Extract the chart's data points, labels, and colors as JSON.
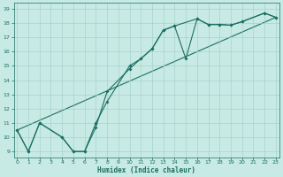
{
  "xlabel": "Humidex (Indice chaleur)",
  "bg_color": "#c8eae4",
  "line_color": "#1a6e62",
  "grid_color": "#a0ccc8",
  "xticks": [
    0,
    1,
    2,
    3,
    4,
    5,
    6,
    7,
    8,
    9,
    10,
    11,
    12,
    13,
    14,
    15,
    16,
    17,
    18,
    19,
    20,
    21,
    22,
    23
  ],
  "yticks": [
    9,
    10,
    11,
    12,
    13,
    14,
    15,
    16,
    17,
    18,
    19
  ],
  "xlim": [
    -0.3,
    23.3
  ],
  "ylim": [
    8.6,
    19.4
  ],
  "curve1_x": [
    0,
    1,
    2,
    4,
    5,
    6,
    7,
    8,
    10,
    11,
    12,
    13,
    14,
    15,
    16,
    17,
    18,
    19,
    20,
    22,
    23
  ],
  "curve1_y": [
    10.5,
    9.0,
    11.0,
    10.0,
    9.0,
    9.0,
    10.7,
    13.2,
    14.8,
    15.5,
    16.2,
    17.5,
    17.8,
    15.5,
    18.3,
    17.9,
    17.9,
    17.85,
    18.1,
    18.7,
    18.4
  ],
  "curve2_x": [
    0,
    1,
    2,
    4,
    5,
    6,
    7,
    8,
    10,
    11,
    12,
    13,
    14,
    16,
    17,
    18,
    19,
    20,
    22,
    23
  ],
  "curve2_y": [
    10.5,
    9.0,
    11.0,
    10.0,
    9.0,
    9.0,
    11.0,
    12.5,
    15.0,
    15.5,
    16.2,
    17.5,
    17.8,
    18.3,
    17.9,
    17.9,
    17.85,
    18.1,
    18.7,
    18.4
  ],
  "line3_x": [
    0,
    23
  ],
  "line3_y": [
    10.5,
    18.4
  ],
  "marker_x": [
    0,
    1,
    2,
    4,
    5,
    6,
    7,
    8,
    10,
    11,
    12,
    13,
    14,
    16,
    17,
    18,
    19,
    20,
    22,
    23
  ],
  "marker_y": [
    10.5,
    9.0,
    11.0,
    10.0,
    9.0,
    9.0,
    10.7,
    13.2,
    15.0,
    15.5,
    16.2,
    17.5,
    17.8,
    18.3,
    17.9,
    17.9,
    17.85,
    18.1,
    18.7,
    18.4
  ]
}
